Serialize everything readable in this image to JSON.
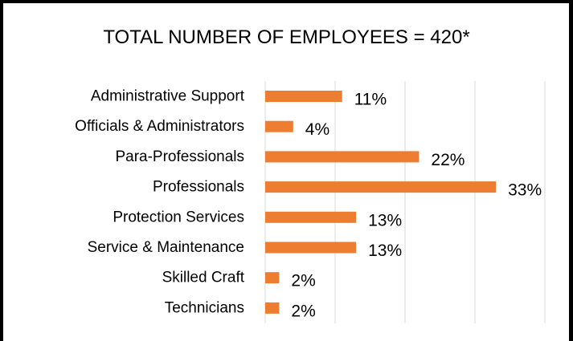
{
  "chart_data": {
    "type": "bar",
    "orientation": "horizontal",
    "title": "TOTAL NUMBER OF EMPLOYEES = 420*",
    "categories": [
      "Administrative Support",
      "Officials & Administrators",
      "Para-Professionals",
      "Professionals",
      "Protection Services",
      "Service & Maintenance",
      "Skilled Craft",
      "Technicians"
    ],
    "values": [
      11,
      4,
      22,
      33,
      13,
      13,
      2,
      2
    ],
    "value_labels": [
      "11%",
      "4%",
      "22%",
      "33%",
      "13%",
      "13%",
      "2%",
      "2%"
    ],
    "unit": "%",
    "xlim": [
      0,
      40
    ],
    "grid": true,
    "legend": "none",
    "xlabel": "",
    "ylabel": "",
    "bar_color": "#ed7d31",
    "grid_color": "#d9d9d9"
  }
}
